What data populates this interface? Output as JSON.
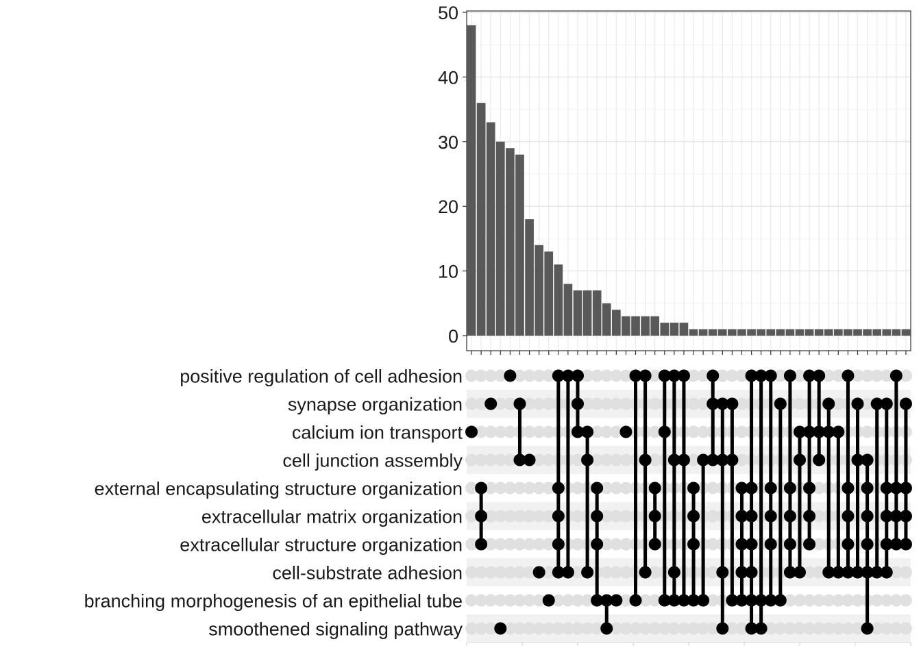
{
  "chart_data": {
    "type": "bar",
    "subtype": "upset",
    "ylim": [
      0,
      50
    ],
    "y_ticks": [
      0,
      10,
      20,
      30,
      40,
      50
    ],
    "grid": true,
    "sets": [
      "positive regulation of cell adhesion",
      "synapse organization",
      "calcium ion transport",
      "cell junction assembly",
      "external encapsulating structure organization",
      "extracellular matrix organization",
      "extracellular structure organization",
      "cell-substrate adhesion",
      "branching morphogenesis of an epithelial tube",
      "smoothened signaling pathway"
    ],
    "values": [
      48,
      36,
      33,
      30,
      29,
      28,
      18,
      14,
      13,
      11,
      8,
      7,
      7,
      7,
      5,
      4,
      3,
      3,
      3,
      3,
      2,
      2,
      2,
      1,
      1,
      1,
      1,
      1,
      1,
      1,
      1,
      1,
      1,
      1,
      1,
      1,
      1,
      1,
      1,
      1,
      1,
      1,
      1,
      1,
      1,
      1
    ],
    "intersections": [
      [
        2
      ],
      [
        4,
        5,
        6
      ],
      [
        1
      ],
      [
        9
      ],
      [
        0
      ],
      [
        1,
        3
      ],
      [
        3
      ],
      [
        7
      ],
      [
        8
      ],
      [
        0,
        4,
        5,
        6,
        7
      ],
      [
        0,
        7
      ],
      [
        0,
        1,
        2
      ],
      [
        2,
        3,
        7
      ],
      [
        4,
        5,
        6,
        8
      ],
      [
        8,
        9
      ],
      [
        8
      ],
      [
        2
      ],
      [
        0,
        8
      ],
      [
        0,
        3,
        7
      ],
      [
        4,
        5,
        6
      ],
      [
        0,
        2,
        8
      ],
      [
        0,
        3,
        7,
        8
      ],
      [
        0,
        3,
        8
      ],
      [
        4,
        5,
        6,
        8
      ],
      [
        3,
        8
      ],
      [
        0,
        1,
        3
      ],
      [
        1,
        3,
        7,
        9
      ],
      [
        1,
        3,
        8
      ],
      [
        4,
        5,
        6,
        7,
        8
      ],
      [
        0,
        4,
        5,
        6,
        7,
        8,
        9
      ],
      [
        0,
        8,
        9
      ],
      [
        0,
        4,
        5,
        6,
        8
      ],
      [
        1,
        8
      ],
      [
        0,
        4,
        5,
        6,
        7
      ],
      [
        2,
        3,
        7
      ],
      [
        0,
        2,
        4,
        5,
        6
      ],
      [
        0,
        2,
        3
      ],
      [
        1,
        2,
        7
      ],
      [
        2,
        7
      ],
      [
        0,
        4,
        5,
        6,
        7
      ],
      [
        1,
        3,
        7
      ],
      [
        3,
        4,
        5,
        6,
        7,
        9
      ],
      [
        1,
        7
      ],
      [
        1,
        4,
        5,
        6,
        7
      ],
      [
        0,
        4,
        5,
        6
      ],
      [
        1,
        4,
        5,
        6
      ]
    ]
  }
}
